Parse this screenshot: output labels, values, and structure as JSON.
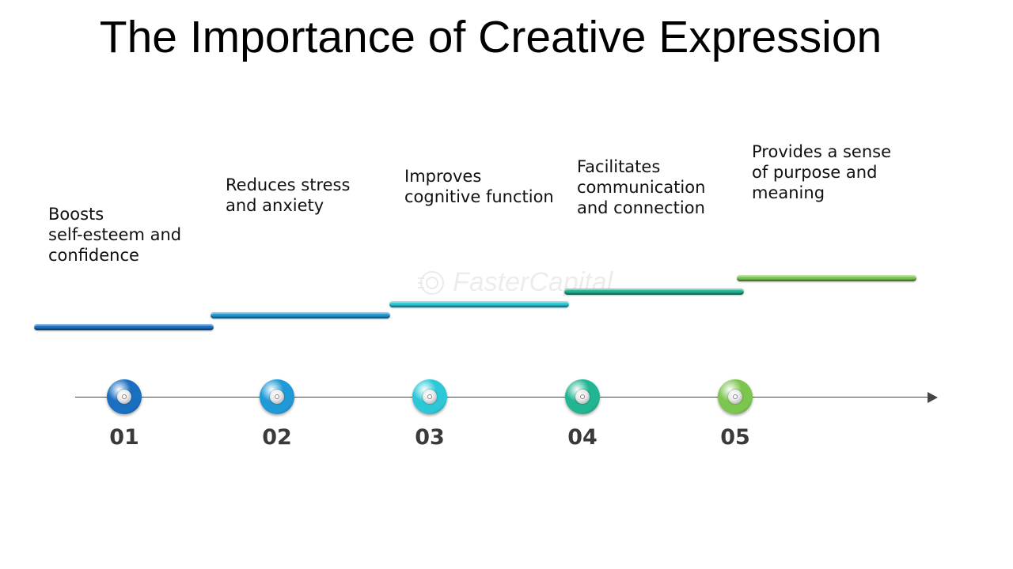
{
  "title": "The Importance of Creative Expression",
  "watermark": "FasterCapital",
  "steps": [
    {
      "number": "01",
      "text": "Boosts\nself-esteem and\nconfidence",
      "color": "#1a6fc0"
    },
    {
      "number": "02",
      "text": "Reduces stress\nand anxiety",
      "color": "#1f9ad6"
    },
    {
      "number": "03",
      "text": "Improves\ncognitive function",
      "color": "#2cc8d8"
    },
    {
      "number": "04",
      "text": "Facilitates\ncommunication\nand connection",
      "color": "#22b592"
    },
    {
      "number": "05",
      "text": "Provides a sense\nof purpose and\nmeaning",
      "color": "#7cc650"
    }
  ]
}
